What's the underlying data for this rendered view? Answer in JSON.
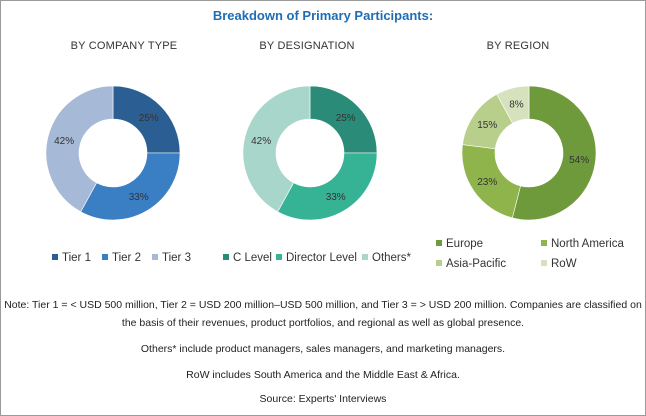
{
  "title": "Breakdown of Primary Participants:",
  "chart_data": [
    {
      "type": "pie",
      "title": "BY COMPANY TYPE",
      "categories": [
        "Tier 1",
        "Tier 2",
        "Tier 3"
      ],
      "values": [
        25,
        33,
        42
      ],
      "labels": [
        "25%",
        "33%",
        "42%"
      ],
      "colors": [
        "#2b5f93",
        "#3a7ec4",
        "#a6b9d6"
      ],
      "donut": true,
      "legend_placement": "bottom"
    },
    {
      "type": "pie",
      "title": "BY DESIGNATION",
      "categories": [
        "C Level",
        "Director Level",
        "Others*"
      ],
      "values": [
        25,
        33,
        42
      ],
      "labels": [
        "25%",
        "33%",
        "42%"
      ],
      "colors": [
        "#2a8c78",
        "#35b394",
        "#a9d6cb"
      ],
      "donut": true,
      "legend_placement": "bottom"
    },
    {
      "type": "pie",
      "title": "BY REGION",
      "categories": [
        "Europe",
        "North America",
        "Asia-Pacific",
        "RoW"
      ],
      "values": [
        54,
        23,
        15,
        8
      ],
      "labels": [
        "54%",
        "23%",
        "15%",
        "8%"
      ],
      "colors": [
        "#6f9a3c",
        "#8fb44b",
        "#b8cf8c",
        "#d5e2bd"
      ],
      "donut": true,
      "legend_placement": "bottom"
    }
  ],
  "notes": {
    "line1": "Note: Tier 1 = < USD 500 million, Tier 2 = USD 200 million–USD 500 million, and Tier 3 = > USD 200 million. Companies are classified on",
    "line2": "the basis of their revenues, product portfolios, and regional as well as global presence.",
    "line3": "Others* include product managers, sales managers, and marketing managers.",
    "line4": "RoW includes South America and the Middle East & Africa.",
    "source": "Source: Experts' Interviews"
  }
}
